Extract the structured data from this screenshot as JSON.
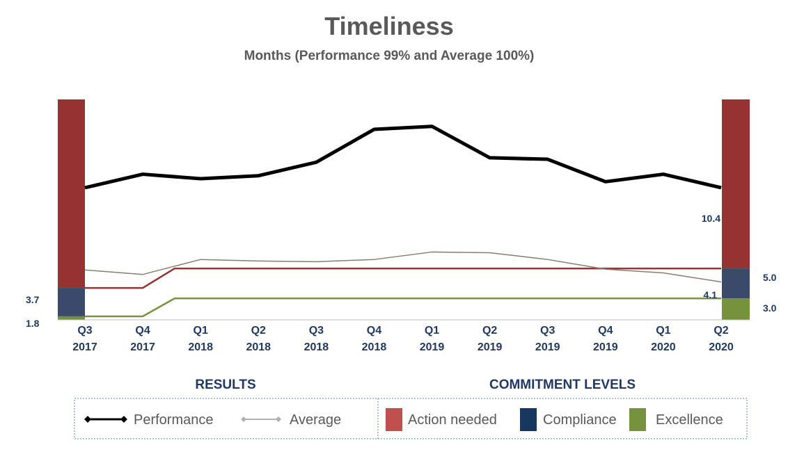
{
  "chart_data": {
    "type": "line",
    "title": "Timeliness",
    "subtitle": "Months (Performance 99% and Average 100%)",
    "categories": [
      [
        "Q3",
        "2017"
      ],
      [
        "Q4",
        "2017"
      ],
      [
        "Q1",
        "2018"
      ],
      [
        "Q2",
        "2018"
      ],
      [
        "Q3",
        "2018"
      ],
      [
        "Q4",
        "2018"
      ],
      [
        "Q1",
        "2019"
      ],
      [
        "Q2",
        "2019"
      ],
      [
        "Q3",
        "2019"
      ],
      [
        "Q4",
        "2019"
      ],
      [
        "Q1",
        "2020"
      ],
      [
        "Q2",
        "2020"
      ]
    ],
    "series": [
      {
        "name": "Performance",
        "color": "#000000",
        "values": [
          10.4,
          11.3,
          11.0,
          11.2,
          12.1,
          14.3,
          14.5,
          12.4,
          12.3,
          10.8,
          11.3,
          10.4
        ]
      },
      {
        "name": "Average",
        "color": "#8c7b70",
        "values": [
          4.9,
          4.6,
          5.6,
          5.5,
          5.45,
          5.6,
          6.1,
          6.05,
          5.6,
          4.95,
          4.7,
          4.1
        ]
      }
    ],
    "thresholds": {
      "action_needed": {
        "name": "Action needed",
        "color": "#963232",
        "values": [
          3.7,
          3.7,
          5.0,
          5.0,
          5.0,
          5.0,
          5.0,
          5.0,
          5.0,
          5.0,
          5.0,
          5.0
        ]
      },
      "excellence": {
        "name": "Excellence",
        "color": "#76923c",
        "values": [
          1.8,
          1.8,
          3.0,
          3.0,
          3.0,
          3.0,
          3.0,
          3.0,
          3.0,
          3.0,
          3.0,
          3.0
        ]
      }
    },
    "left_band": {
      "excellence_max": 1.8,
      "compliance_max": 3.7
    },
    "right_band": {
      "excellence_max": 3.0,
      "compliance_max": 5.0
    },
    "ylim": [
      1.1,
      16.3
    ],
    "data_labels": {
      "performance_last": "10.4",
      "average_last": "4.1",
      "left_compliance": "3.7",
      "left_excellence": "1.8",
      "right_compliance": "5.0",
      "right_excellence": "3.0"
    },
    "grid": false
  },
  "legend": {
    "results_heading": "RESULTS",
    "commitment_heading": "COMMITMENT LEVELS",
    "performance_label": "Performance",
    "average_label": "Average",
    "action_label": "Action needed",
    "compliance_label": "Compliance",
    "excellence_label": "Excellence",
    "colors": {
      "action": "#c0504d",
      "compliance": "#17375e",
      "excellence": "#76923c",
      "performance": "#000000",
      "average": "#b0b0b0"
    }
  }
}
